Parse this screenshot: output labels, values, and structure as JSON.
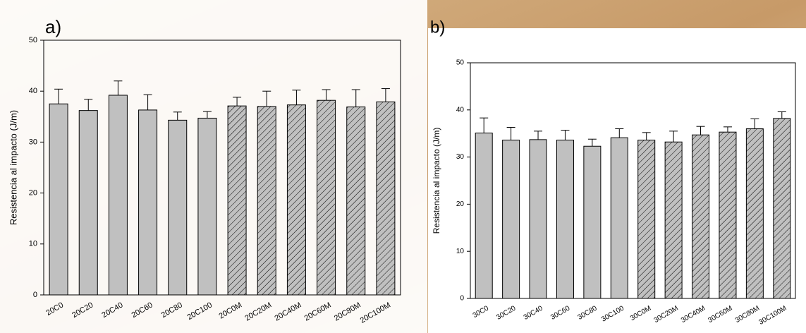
{
  "chart_data": [
    {
      "type": "bar",
      "label": "a)",
      "ylabel": "Resistencia al impacto (J/m)",
      "categories": [
        "20C0",
        "20C20",
        "20C40",
        "20C60",
        "20C80",
        "20C100",
        "20C0M",
        "20C20M",
        "20C40M",
        "20C60M",
        "20C80M",
        "20C100M"
      ],
      "values": [
        37.5,
        36.2,
        39.2,
        36.3,
        34.3,
        34.7,
        37.1,
        37.0,
        37.3,
        38.2,
        36.9,
        37.9
      ],
      "errors": [
        2.9,
        2.2,
        2.8,
        3.0,
        1.6,
        1.3,
        1.7,
        3.0,
        2.9,
        2.1,
        3.4,
        2.6
      ],
      "hatched": [
        false,
        false,
        false,
        false,
        false,
        false,
        true,
        true,
        true,
        true,
        true,
        true
      ],
      "color": "#c0c0c0",
      "ylim": [
        0,
        50
      ],
      "yticks": [
        0,
        10,
        20,
        30,
        40,
        50
      ]
    },
    {
      "type": "bar",
      "label": "b)",
      "ylabel": "Resistencia al impacto (J/m)",
      "categories": [
        "30C0",
        "30C20",
        "30C40",
        "30C60",
        "30C80",
        "30C100",
        "30C0M",
        "30C20M",
        "30C40M",
        "30C60M",
        "30C80M",
        "30C100M"
      ],
      "values": [
        35.1,
        33.6,
        33.7,
        33.6,
        32.3,
        34.1,
        33.6,
        33.2,
        34.7,
        35.3,
        36.0,
        38.2
      ],
      "errors": [
        3.2,
        2.7,
        1.8,
        2.1,
        1.5,
        1.9,
        1.6,
        2.3,
        1.8,
        1.1,
        2.1,
        1.4
      ],
      "hatched": [
        false,
        false,
        false,
        false,
        false,
        false,
        true,
        true,
        true,
        true,
        true,
        true
      ],
      "color": "#c0c0c0",
      "ylim": [
        0,
        50
      ],
      "yticks": [
        0,
        10,
        20,
        30,
        40,
        50
      ]
    }
  ]
}
